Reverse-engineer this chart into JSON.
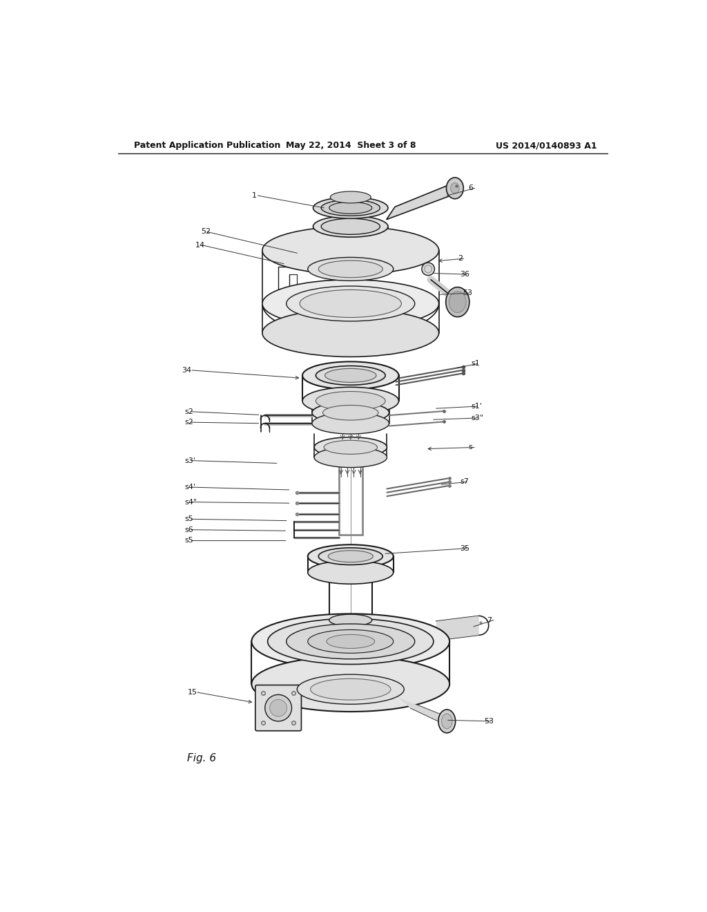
{
  "title_left": "Patent Application Publication",
  "title_mid": "May 22, 2014  Sheet 3 of 8",
  "title_right": "US 2014/0140893 A1",
  "fig_label": "Fig. 6",
  "bg_color": "#ffffff",
  "lc": "#1a1a1a",
  "lc_light": "#555555",
  "lc_med": "#333333",
  "fc_light": "#e8e8e8",
  "fc_med": "#d5d5d5",
  "fc_dark": "#c0c0c0",
  "label_fs": 8.0,
  "header_fs": 9.0
}
